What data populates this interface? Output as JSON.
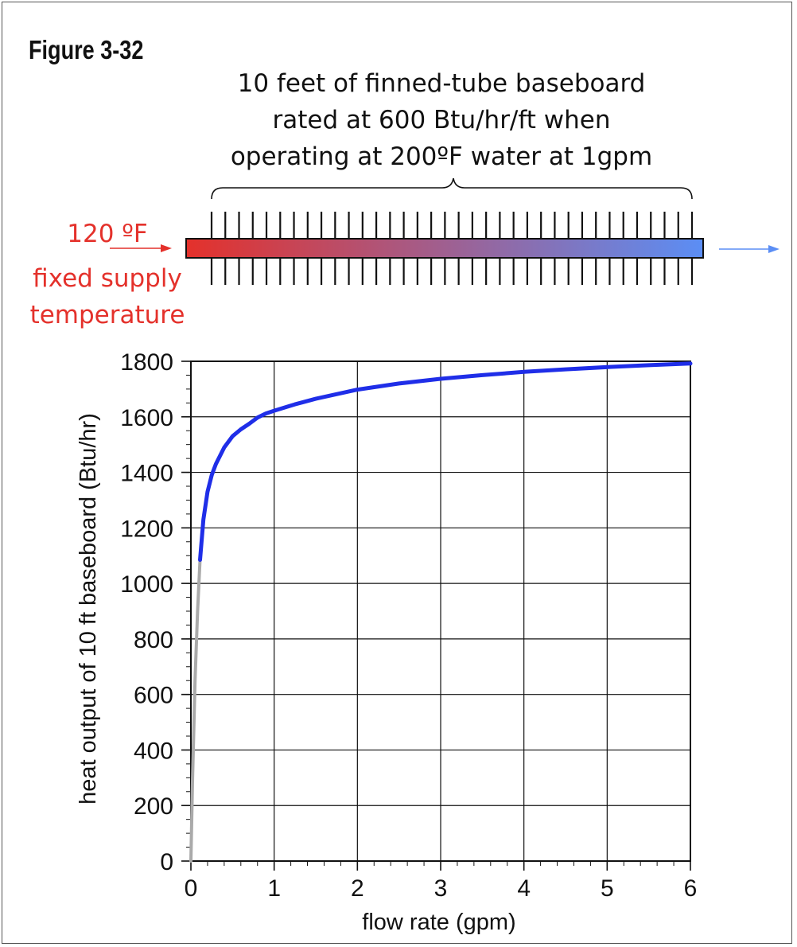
{
  "figure": {
    "label": "Figure 3-32"
  },
  "diagram": {
    "caption_lines": [
      "10 feet of finned-tube baseboard",
      "rated at 600 Btu/hr/ft when",
      "operating at  200ºF water at 1gpm"
    ],
    "supply_temp": "120 ºF",
    "supply_label_lines": [
      "fixed supply",
      "temperature"
    ],
    "colors": {
      "inlet": "#e4312b",
      "outlet": "#5b8ef5",
      "fins": "#111111"
    },
    "fin_count": 36
  },
  "chart_data": {
    "type": "line",
    "xlabel": "flow rate (gpm)",
    "ylabel": "heat output of 10 ft baseboard  (Btu/hr)",
    "xlim": [
      0,
      6
    ],
    "ylim": [
      0,
      1800
    ],
    "x_ticks": [
      "0",
      "1",
      "2",
      "3",
      "4",
      "5",
      "6"
    ],
    "y_ticks": [
      "0",
      "200",
      "400",
      "600",
      "800",
      "1000",
      "1200",
      "1400",
      "1600",
      "1800"
    ],
    "grid": true,
    "series": [
      {
        "color": "#aaaaaa",
        "style": "gray",
        "x": [
          0,
          0.02,
          0.05,
          0.08,
          0.11
        ],
        "y": [
          0,
          300,
          650,
          900,
          1085
        ]
      },
      {
        "color": "#1f2ee8",
        "style": "blue",
        "x": [
          0.11,
          0.15,
          0.2,
          0.25,
          0.3,
          0.4,
          0.5,
          0.6,
          0.7,
          0.8,
          0.9,
          1.0,
          1.25,
          1.5,
          2.0,
          2.5,
          3.0,
          3.5,
          4.0,
          4.5,
          5.0,
          5.5,
          6.0
        ],
        "y": [
          1085,
          1230,
          1330,
          1390,
          1430,
          1490,
          1530,
          1555,
          1575,
          1597,
          1612,
          1622,
          1645,
          1665,
          1698,
          1720,
          1737,
          1750,
          1762,
          1771,
          1779,
          1786,
          1792
        ]
      }
    ]
  }
}
